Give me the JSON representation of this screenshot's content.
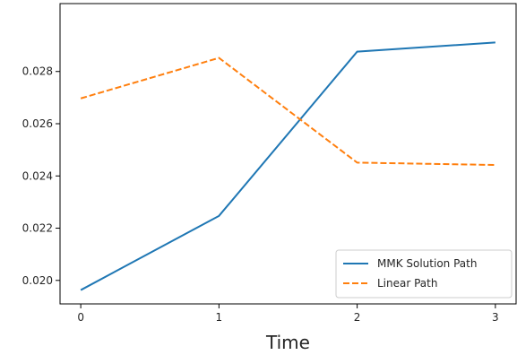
{
  "chart_data": {
    "type": "line",
    "title": "",
    "xlabel": "Time",
    "ylabel": "",
    "x": [
      0,
      1,
      2,
      3
    ],
    "xlim": [
      -0.15,
      3.15
    ],
    "ylim": [
      0.0191,
      0.0306
    ],
    "xticks": [
      {
        "value": 0,
        "label": "0"
      },
      {
        "value": 1,
        "label": "1"
      },
      {
        "value": 2,
        "label": "2"
      },
      {
        "value": 3,
        "label": "3"
      }
    ],
    "yticks": [
      {
        "value": 0.02,
        "label": "0.020"
      },
      {
        "value": 0.022,
        "label": "0.022"
      },
      {
        "value": 0.024,
        "label": "0.024"
      },
      {
        "value": 0.026,
        "label": "0.026"
      },
      {
        "value": 0.028,
        "label": "0.028"
      }
    ],
    "grid": false,
    "legend_position": "lower-right",
    "series": [
      {
        "name": "MMK Solution Path",
        "values": [
          0.01963,
          0.02247,
          0.02876,
          0.02911
        ],
        "color": "#1f77b4",
        "style": "solid"
      },
      {
        "name": "Linear Path",
        "values": [
          0.02697,
          0.02852,
          0.02451,
          0.02442
        ],
        "color": "#ff7f0e",
        "style": "dashed"
      }
    ]
  }
}
